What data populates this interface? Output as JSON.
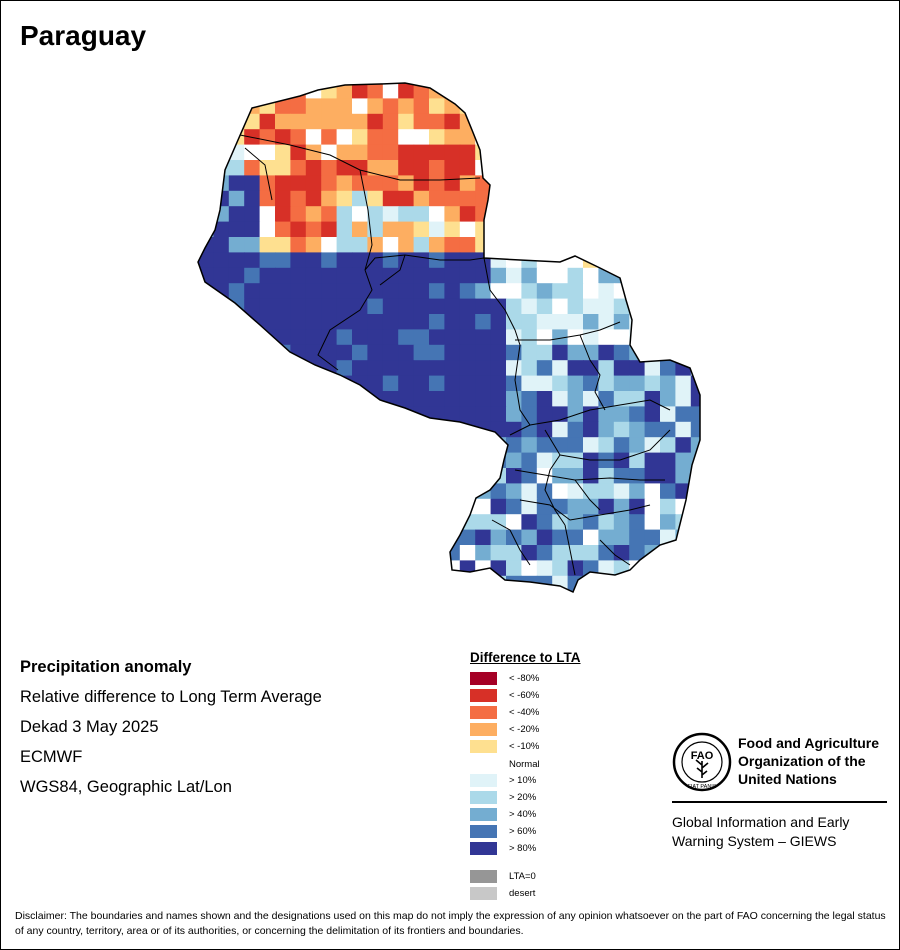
{
  "title": "Paraguay",
  "info": {
    "heading": "Precipitation anomaly",
    "line1": "Relative difference to Long Term Average",
    "line2": "Dekad 3 May 2025",
    "line3": "ECMWF",
    "line4": "WGS84, Geographic Lat/Lon"
  },
  "legend": {
    "title": "Difference to LTA",
    "items": [
      {
        "label": "< -80%",
        "color": "#a50026"
      },
      {
        "label": "< -60%",
        "color": "#d73027"
      },
      {
        "label": "< -40%",
        "color": "#f46d43"
      },
      {
        "label": "< -20%",
        "color": "#fdae61"
      },
      {
        "label": "< -10%",
        "color": "#fee090"
      },
      {
        "label": "Normal",
        "color": "#ffffff"
      },
      {
        "label": "> 10%",
        "color": "#e0f3f8"
      },
      {
        "label": "> 20%",
        "color": "#abd9e9"
      },
      {
        "label": "> 40%",
        "color": "#74add1"
      },
      {
        "label": "> 60%",
        "color": "#4575b4"
      },
      {
        "label": "> 80%",
        "color": "#313695"
      },
      {
        "label": "LTA=0",
        "color": "#969696"
      },
      {
        "label": "desert",
        "color": "#c8c8c8"
      }
    ]
  },
  "organization": {
    "name": "Food and Agriculture Organization of the United Nations",
    "logo_text": "FIAT PANIS",
    "system": "Global Information and Early Warning System – GIEWS"
  },
  "disclaimer": "Disclaimer: The boundaries and names shown and the designations used on this map do not imply the expression of any opinion whatsoever on the part of FAO concerning the legal status of any country, territory, area or of its authorities, or concerning the delimitation of its frontiers and boundaries."
}
